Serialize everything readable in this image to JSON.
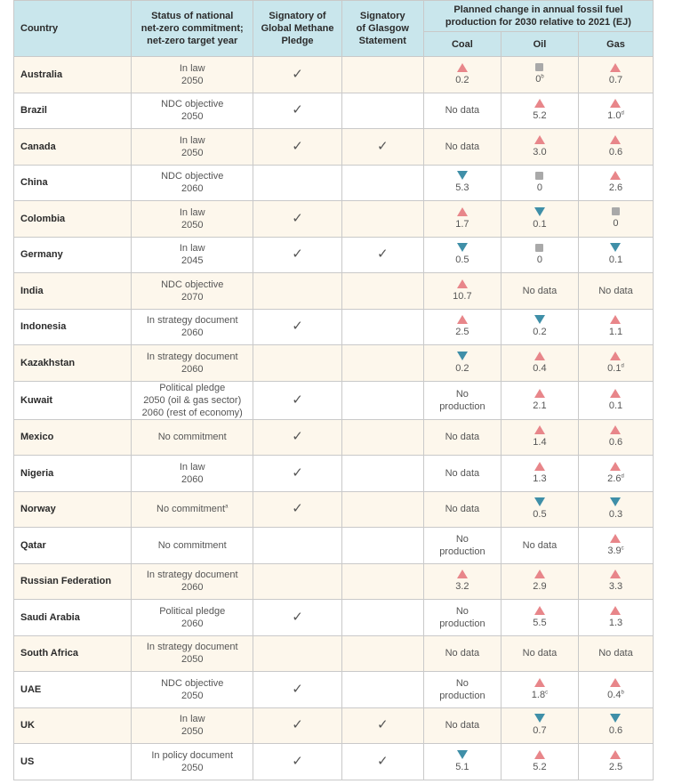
{
  "header": {
    "country": "Country",
    "netzero": [
      "Status of national",
      "net-zero commitment;",
      "net-zero target year"
    ],
    "methane": [
      "Signatory of",
      "Global Methane",
      "Pledge"
    ],
    "glasgow": [
      "Signatory",
      "of Glasgow",
      "Statement"
    ],
    "planned": [
      "Planned change in annual fossil fuel",
      "production for 2030 relative to 2021 (EJ)"
    ],
    "coal": "Coal",
    "oil": "Oil",
    "gas": "Gas"
  },
  "check_symbol": "✓",
  "colors": {
    "header_bg": "#c9e6ec",
    "odd_row": "#fdf7ec",
    "increase": "#e8868a",
    "decrease": "#3f8fa8",
    "no_change": "#a9a9a9"
  },
  "rows": [
    {
      "country": "Australia",
      "netzero": [
        "In law",
        "2050"
      ],
      "methane": "✓",
      "glasgow": "",
      "coal": {
        "dir": "up",
        "val": "0.2"
      },
      "oil": {
        "dir": "flat",
        "val": "0",
        "sup": "b"
      },
      "gas": {
        "dir": "up",
        "val": "0.7"
      }
    },
    {
      "country": "Brazil",
      "netzero": [
        "NDC objective",
        "2050"
      ],
      "methane": "✓",
      "glasgow": "",
      "coal": {
        "text": [
          "No data"
        ]
      },
      "oil": {
        "dir": "up",
        "val": "5.2"
      },
      "gas": {
        "dir": "up",
        "val": "1.0",
        "sup": "d"
      }
    },
    {
      "country": "Canada",
      "netzero": [
        "In law",
        "2050"
      ],
      "methane": "✓",
      "glasgow": "✓",
      "coal": {
        "text": [
          "No data"
        ]
      },
      "oil": {
        "dir": "up",
        "val": "3.0"
      },
      "gas": {
        "dir": "up",
        "val": "0.6"
      }
    },
    {
      "country": "China",
      "netzero": [
        "NDC objective",
        "2060"
      ],
      "methane": "",
      "glasgow": "",
      "coal": {
        "dir": "down",
        "val": "5.3"
      },
      "oil": {
        "dir": "flat",
        "val": "0"
      },
      "gas": {
        "dir": "up",
        "val": "2.6"
      }
    },
    {
      "country": "Colombia",
      "netzero": [
        "In law",
        "2050"
      ],
      "methane": "✓",
      "glasgow": "",
      "coal": {
        "dir": "up",
        "val": "1.7"
      },
      "oil": {
        "dir": "down",
        "val": "0.1"
      },
      "gas": {
        "dir": "flat",
        "val": "0"
      }
    },
    {
      "country": "Germany",
      "netzero": [
        "In law",
        "2045"
      ],
      "methane": "✓",
      "glasgow": "✓",
      "coal": {
        "dir": "down",
        "val": "0.5"
      },
      "oil": {
        "dir": "flat",
        "val": "0"
      },
      "gas": {
        "dir": "down",
        "val": "0.1"
      }
    },
    {
      "country": "India",
      "netzero": [
        "NDC objective",
        "2070"
      ],
      "methane": "",
      "glasgow": "",
      "coal": {
        "dir": "up",
        "val": "10.7"
      },
      "oil": {
        "text": [
          "No data"
        ]
      },
      "gas": {
        "text": [
          "No data"
        ]
      }
    },
    {
      "country": "Indonesia",
      "netzero": [
        "In strategy document",
        "2060"
      ],
      "methane": "✓",
      "glasgow": "",
      "coal": {
        "dir": "up",
        "val": "2.5"
      },
      "oil": {
        "dir": "down",
        "val": "0.2"
      },
      "gas": {
        "dir": "up",
        "val": "1.1"
      }
    },
    {
      "country": "Kazakhstan",
      "netzero": [
        "In strategy document",
        "2060"
      ],
      "methane": "",
      "glasgow": "",
      "coal": {
        "dir": "down",
        "val": "0.2"
      },
      "oil": {
        "dir": "up",
        "val": "0.4"
      },
      "gas": {
        "dir": "up",
        "val": "0.1",
        "sup": "d"
      }
    },
    {
      "country": "Kuwait",
      "netzero": [
        "Political pledge",
        "2050 (oil & gas sector)",
        "2060 (rest of economy)"
      ],
      "methane": "✓",
      "glasgow": "",
      "coal": {
        "text": [
          "No",
          "production"
        ]
      },
      "oil": {
        "dir": "up",
        "val": "2.1"
      },
      "gas": {
        "dir": "up",
        "val": "0.1"
      }
    },
    {
      "country": "Mexico",
      "netzero": [
        "No commitment"
      ],
      "methane": "✓",
      "glasgow": "",
      "coal": {
        "text": [
          "No data"
        ]
      },
      "oil": {
        "dir": "up",
        "val": "1.4"
      },
      "gas": {
        "dir": "up",
        "val": "0.6"
      }
    },
    {
      "country": "Nigeria",
      "netzero": [
        "In law",
        "2060"
      ],
      "methane": "✓",
      "glasgow": "",
      "coal": {
        "text": [
          "No data"
        ]
      },
      "oil": {
        "dir": "up",
        "val": "1.3"
      },
      "gas": {
        "dir": "up",
        "val": "2.6",
        "sup": "d"
      }
    },
    {
      "country": "Norway",
      "netzero": [
        "No commitment"
      ],
      "netzero_sup": "a",
      "methane": "✓",
      "glasgow": "",
      "coal": {
        "text": [
          "No data"
        ]
      },
      "oil": {
        "dir": "down",
        "val": "0.5"
      },
      "gas": {
        "dir": "down",
        "val": "0.3"
      }
    },
    {
      "country": "Qatar",
      "netzero": [
        "No commitment"
      ],
      "methane": "",
      "glasgow": "",
      "coal": {
        "text": [
          "No",
          "production"
        ]
      },
      "oil": {
        "text": [
          "No data"
        ]
      },
      "gas": {
        "dir": "up",
        "val": "3.9",
        "sup": "c"
      }
    },
    {
      "country": "Russian Federation",
      "netzero": [
        "In strategy document",
        "2060"
      ],
      "methane": "",
      "glasgow": "",
      "coal": {
        "dir": "up",
        "val": "3.2"
      },
      "oil": {
        "dir": "up",
        "val": "2.9"
      },
      "gas": {
        "dir": "up",
        "val": "3.3"
      }
    },
    {
      "country": "Saudi Arabia",
      "netzero": [
        "Political pledge",
        "2060"
      ],
      "methane": "✓",
      "glasgow": "",
      "coal": {
        "text": [
          "No",
          "production"
        ]
      },
      "oil": {
        "dir": "up",
        "val": "5.5"
      },
      "gas": {
        "dir": "up",
        "val": "1.3"
      }
    },
    {
      "country": "South Africa",
      "netzero": [
        "In strategy document",
        "2050"
      ],
      "methane": "",
      "glasgow": "",
      "coal": {
        "text": [
          "No data"
        ]
      },
      "oil": {
        "text": [
          "No data"
        ]
      },
      "gas": {
        "text": [
          "No data"
        ]
      }
    },
    {
      "country": "UAE",
      "netzero": [
        "NDC objective",
        "2050"
      ],
      "methane": "✓",
      "glasgow": "",
      "coal": {
        "text": [
          "No",
          "production"
        ]
      },
      "oil": {
        "dir": "up",
        "val": "1.8",
        "sup": "c"
      },
      "gas": {
        "dir": "up",
        "val": "0.4",
        "sup": "b"
      }
    },
    {
      "country": "UK",
      "netzero": [
        "In law",
        "2050"
      ],
      "methane": "✓",
      "glasgow": "✓",
      "coal": {
        "text": [
          "No data"
        ]
      },
      "oil": {
        "dir": "down",
        "val": "0.7"
      },
      "gas": {
        "dir": "down",
        "val": "0.6"
      }
    },
    {
      "country": "US",
      "netzero": [
        "In policy document",
        "2050"
      ],
      "methane": "✓",
      "glasgow": "✓",
      "coal": {
        "dir": "down",
        "val": "5.1"
      },
      "oil": {
        "dir": "up",
        "val": "5.2"
      },
      "gas": {
        "dir": "up",
        "val": "2.5"
      }
    }
  ]
}
